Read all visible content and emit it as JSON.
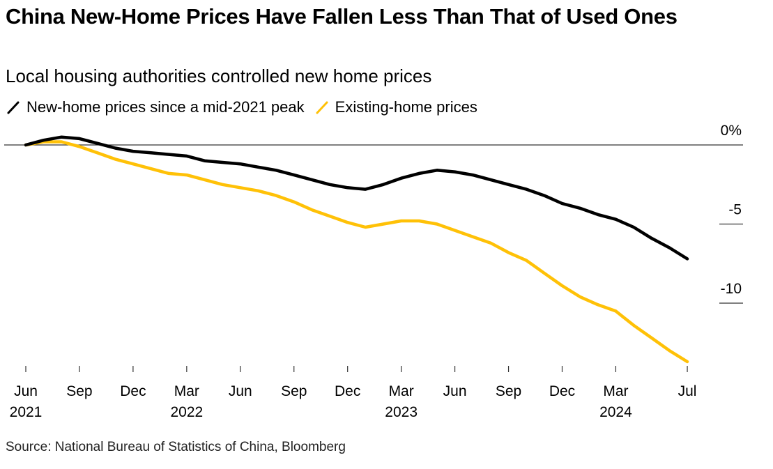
{
  "title": "China New-Home Prices Have Fallen Less Than That of Used Ones",
  "subtitle": "Local housing authorities controlled new home prices",
  "source": "Source: National Bureau of Statistics of China, Bloomberg",
  "legend": [
    {
      "label": "New-home prices since a mid-2021 peak",
      "color": "#000000",
      "icon": "slash-line-icon"
    },
    {
      "label": "Existing-home prices",
      "color": "#FFC107",
      "icon": "slash-line-icon"
    }
  ],
  "chart_data": {
    "type": "line",
    "title": "China New-Home Prices Have Fallen Less Than That of Used Ones",
    "subtitle": "Local housing authorities controlled new home prices",
    "xlabel": "",
    "ylabel": "",
    "y_unit": "%",
    "ylim": [
      -14,
      0.8
    ],
    "y_ticks": [
      {
        "value": 0,
        "label": "0%"
      },
      {
        "value": -5,
        "label": "-5"
      },
      {
        "value": -10,
        "label": "-10"
      }
    ],
    "x_start": "2021-06",
    "x_end": "2024-07",
    "x_ticks": [
      {
        "month_index": 0,
        "label": "Jun",
        "year": "2021"
      },
      {
        "month_index": 3,
        "label": "Sep",
        "year": ""
      },
      {
        "month_index": 6,
        "label": "Dec",
        "year": ""
      },
      {
        "month_index": 9,
        "label": "Mar",
        "year": "2022"
      },
      {
        "month_index": 12,
        "label": "Jun",
        "year": ""
      },
      {
        "month_index": 15,
        "label": "Sep",
        "year": ""
      },
      {
        "month_index": 18,
        "label": "Dec",
        "year": ""
      },
      {
        "month_index": 21,
        "label": "Mar",
        "year": "2023"
      },
      {
        "month_index": 24,
        "label": "Jun",
        "year": ""
      },
      {
        "month_index": 27,
        "label": "Sep",
        "year": ""
      },
      {
        "month_index": 30,
        "label": "Dec",
        "year": ""
      },
      {
        "month_index": 33,
        "label": "Mar",
        "year": "2024"
      },
      {
        "month_index": 37,
        "label": "Jul",
        "year": ""
      }
    ],
    "grid": false,
    "zero_line": true,
    "legend_position": "top-left",
    "y_axis_position": "right",
    "series": [
      {
        "name": "New-home prices since a mid-2021 peak",
        "color": "#000000",
        "values": [
          0,
          0.3,
          0.5,
          0.4,
          0.1,
          -0.2,
          -0.4,
          -0.5,
          -0.6,
          -0.7,
          -1.0,
          -1.1,
          -1.2,
          -1.4,
          -1.6,
          -1.9,
          -2.2,
          -2.5,
          -2.7,
          -2.8,
          -2.5,
          -2.1,
          -1.8,
          -1.6,
          -1.7,
          -1.9,
          -2.2,
          -2.5,
          -2.8,
          -3.2,
          -3.7,
          -4.0,
          -4.4,
          -4.7,
          -5.2,
          -5.9,
          -6.5,
          -7.2
        ]
      },
      {
        "name": "Existing-home prices",
        "color": "#FFC107",
        "values": [
          0,
          0.2,
          0.2,
          -0.1,
          -0.5,
          -0.9,
          -1.2,
          -1.5,
          -1.8,
          -1.9,
          -2.2,
          -2.5,
          -2.7,
          -2.9,
          -3.2,
          -3.6,
          -4.1,
          -4.5,
          -4.9,
          -5.2,
          -5.0,
          -4.8,
          -4.8,
          -5.0,
          -5.4,
          -5.8,
          -6.2,
          -6.8,
          -7.3,
          -8.1,
          -8.9,
          -9.6,
          -10.1,
          -10.5,
          -11.4,
          -12.2,
          -13.0,
          -13.7
        ]
      }
    ]
  }
}
